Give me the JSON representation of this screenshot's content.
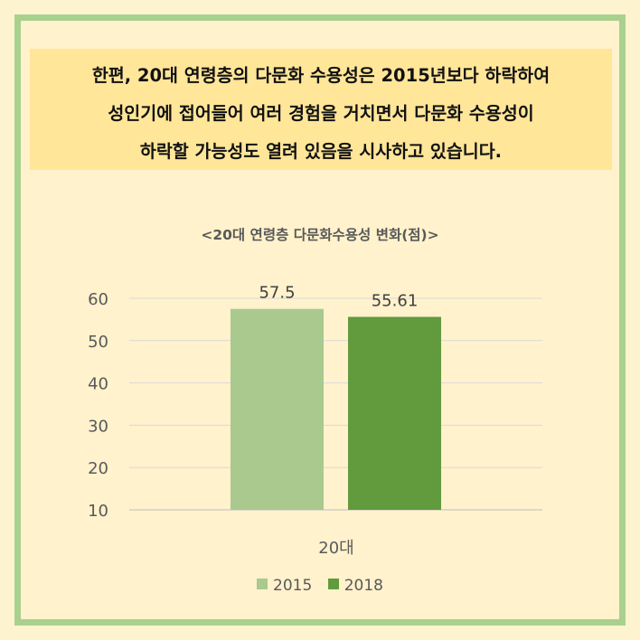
{
  "callout": {
    "lines": [
      "한편, 20대 연령층의 다문화 수용성은 2015년보다 하락하여",
      "성인기에 접어들어 여러 경험을 거치면서 다문화 수용성이",
      "하락할 가능성도 열려 있음을 시사하고 있습니다."
    ]
  },
  "chart_data": {
    "type": "bar",
    "title": "<20대 연령층 다문화수용성 변화(점)>",
    "categories": [
      "20대"
    ],
    "series": [
      {
        "name": "2015",
        "values": [
          57.5
        ],
        "color": "#a9c98f"
      },
      {
        "name": "2018",
        "values": [
          55.61
        ],
        "color": "#629a3e"
      }
    ],
    "data_labels": [
      "57.5",
      "55.61"
    ],
    "ylim": [
      10,
      60
    ],
    "yticks": [
      10,
      20,
      30,
      40,
      50,
      60
    ],
    "grid": true,
    "legend": "bottom"
  }
}
